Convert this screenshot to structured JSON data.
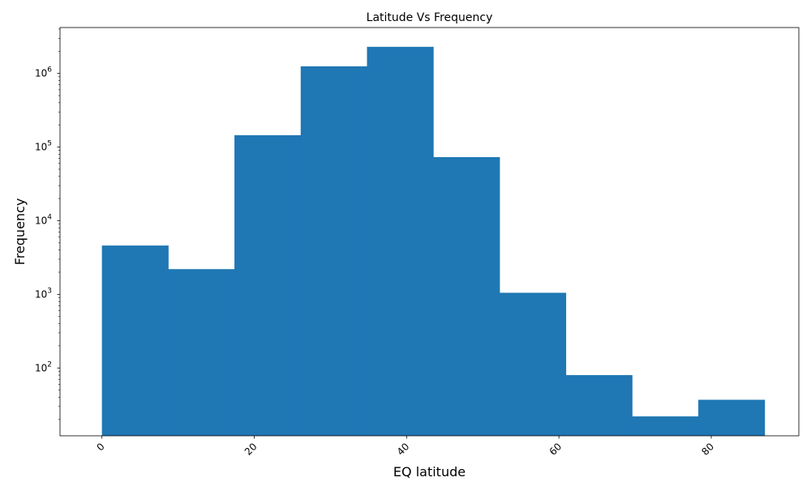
{
  "chart_data": {
    "type": "bar",
    "title": "Latitude Vs Frequency",
    "xlabel": "EQ latitude",
    "ylabel": "Frequency",
    "yscale": "log",
    "xlim": [
      -5.5,
      91.5
    ],
    "ylim": [
      12,
      4200000
    ],
    "grid": false,
    "legend": "none",
    "color": "#1f77b4",
    "bin_edges": [
      0,
      8.7,
      17.4,
      26.1,
      34.8,
      43.5,
      52.2,
      60.9,
      69.6,
      78.3,
      87.0
    ],
    "values": [
      4600,
      2200,
      145000,
      1250000,
      2300000,
      73000,
      1050,
      80,
      22,
      37
    ],
    "x_ticks": [
      0,
      20,
      40,
      60,
      80
    ],
    "x_tick_labels": [
      "0",
      "20",
      "40",
      "60",
      "80"
    ],
    "y_major_ticks": [
      100,
      1000,
      10000,
      100000,
      1000000
    ],
    "y_tick_labels": [
      {
        "base": "10",
        "exp": "2"
      },
      {
        "base": "10",
        "exp": "3"
      },
      {
        "base": "10",
        "exp": "4"
      },
      {
        "base": "10",
        "exp": "5"
      },
      {
        "base": "10",
        "exp": "6"
      }
    ]
  }
}
